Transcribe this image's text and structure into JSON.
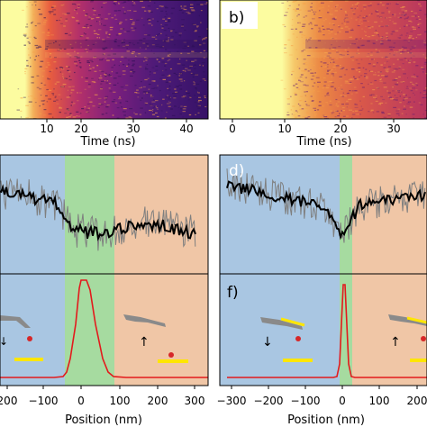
{
  "panels": {
    "a": {
      "label": "",
      "xlabel": "Time (ns)",
      "ticks": [
        "10",
        "20",
        "30",
        "40"
      ]
    },
    "b": {
      "label": "b)",
      "xlabel": "Time (ns)",
      "ticks": [
        "0",
        "10",
        "20",
        "30"
      ]
    },
    "c": {
      "label": ""
    },
    "d": {
      "label": "d)"
    },
    "e": {
      "label": "",
      "xlabel": "Position (nm)",
      "ticks": [
        "200",
        "−100",
        "0",
        "100",
        "200",
        "300"
      ]
    },
    "f": {
      "label": "f)",
      "xlabel": "Position (nm)",
      "ticks": [
        "−300",
        "−200",
        "−100",
        "0",
        "100",
        "200"
      ]
    }
  },
  "colors": {
    "blue_region": "#a9c6e2",
    "green_region": "#a6dba0",
    "orange_region": "#f0c6a6",
    "trace_raw": "#7f7f7f",
    "trace_smooth": "#000000",
    "profile": "#e31a1c",
    "heat_bright": "#fcfca0",
    "cantilever": "#8a8a8a",
    "marker": "#d62728",
    "bar": "#ffe600"
  },
  "icons": [
    "cantilever-icon",
    "arrow-down-icon",
    "arrow-up-icon",
    "dot-icon",
    "yellow-bar-icon"
  ]
}
